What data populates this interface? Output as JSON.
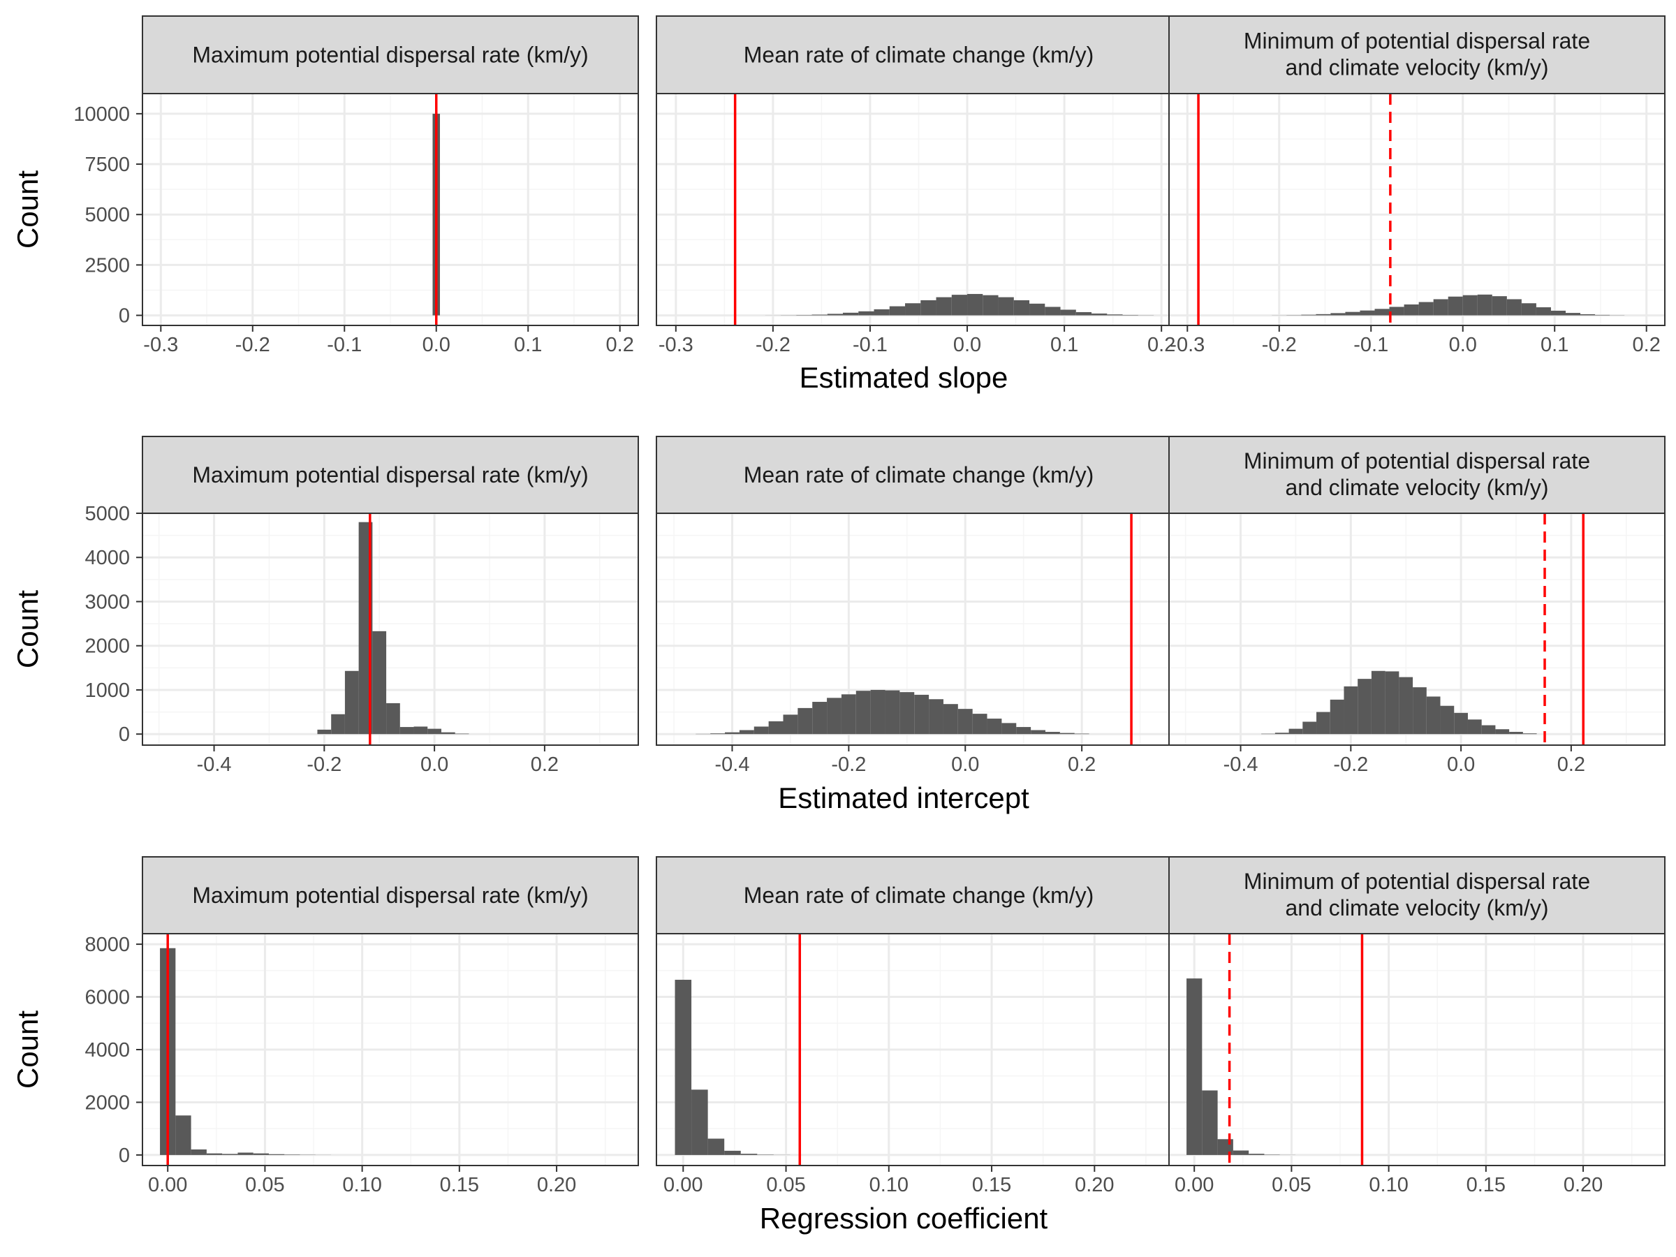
{
  "figure": {
    "y_axis_label": "Count",
    "row_xlabels": [
      "Estimated slope",
      "Estimated intercept",
      "Regression coefficient"
    ],
    "facet_titles": [
      [
        "Maximum potential dispersal rate (km/y)"
      ],
      [
        "Mean rate of climate change (km/y)"
      ],
      [
        "Minimum of potential dispersal rate",
        "and climate velocity (km/y)"
      ]
    ],
    "colors": {
      "bar": "#595959",
      "vline": "#ff0000",
      "strip_fill": "#d9d9d9",
      "strip_border": "#333333",
      "grid_major": "#ebebeb",
      "grid_minor": "#f5f5f5",
      "panel_border": "#333333",
      "tick_text": "#4d4d4d"
    }
  },
  "chart_data": [
    {
      "type": "bar",
      "row": 0,
      "panel": "Maximum potential dispersal rate (km/y)",
      "x": [
        0.0
      ],
      "values": [
        9999
      ],
      "bin_width": 0.008,
      "xlim": [
        -0.32,
        0.22
      ],
      "ylim": [
        -500,
        11000
      ],
      "xticks": [
        -0.3,
        -0.2,
        -0.1,
        0.0,
        0.1,
        0.2
      ],
      "xtick_labels": [
        "-0.3",
        "-0.2",
        "-0.1",
        "0.0",
        "0.1",
        "0.2"
      ],
      "yticks": [
        0,
        2500,
        5000,
        7500,
        10000
      ],
      "ytick_labels": [
        "0",
        "2500",
        "5000",
        "7500",
        "10000"
      ],
      "vlines": [
        {
          "x": 0.0,
          "style": "solid"
        }
      ]
    },
    {
      "type": "bar",
      "row": 0,
      "panel": "Mean rate of climate change (km/y)",
      "x": [
        -0.2,
        -0.184,
        -0.168,
        -0.152,
        -0.136,
        -0.12,
        -0.104,
        -0.088,
        -0.072,
        -0.056,
        -0.04,
        -0.024,
        -0.008,
        0.008,
        0.024,
        0.04,
        0.056,
        0.072,
        0.088,
        0.104,
        0.12,
        0.136,
        0.152,
        0.168,
        0.184
      ],
      "values": [
        3,
        8,
        18,
        35,
        75,
        130,
        200,
        300,
        450,
        600,
        750,
        900,
        1020,
        1060,
        1000,
        900,
        750,
        580,
        420,
        280,
        160,
        90,
        45,
        20,
        8
      ],
      "bin_width": 0.016,
      "xlim": [
        -0.32,
        0.22
      ],
      "ylim": [
        -500,
        11000
      ],
      "xticks": [
        -0.3,
        -0.2,
        -0.1,
        0.0,
        0.1,
        0.2
      ],
      "xtick_labels": [
        "-0.3",
        "-0.2",
        "-0.1",
        "0.0",
        "0.1",
        "0.2"
      ],
      "yticks": [
        0,
        2500,
        5000,
        7500,
        10000
      ],
      "ytick_labels": [
        "0",
        "2500",
        "5000",
        "7500",
        "10000"
      ],
      "vlines": [
        {
          "x": -0.239,
          "style": "solid"
        }
      ]
    },
    {
      "type": "bar",
      "row": 0,
      "panel": "Minimum of potential dispersal rate and climate velocity (km/y)",
      "x": [
        -0.2,
        -0.184,
        -0.168,
        -0.152,
        -0.136,
        -0.12,
        -0.104,
        -0.088,
        -0.072,
        -0.056,
        -0.04,
        -0.024,
        -0.008,
        0.008,
        0.024,
        0.04,
        0.056,
        0.072,
        0.088,
        0.104,
        0.12,
        0.136,
        0.152,
        0.168
      ],
      "values": [
        5,
        12,
        30,
        60,
        110,
        170,
        240,
        320,
        420,
        540,
        660,
        800,
        930,
        1000,
        1030,
        950,
        800,
        600,
        400,
        230,
        120,
        55,
        22,
        8
      ],
      "bin_width": 0.016,
      "xlim": [
        -0.32,
        0.22
      ],
      "ylim": [
        -500,
        11000
      ],
      "xticks": [
        -0.3,
        -0.2,
        -0.1,
        0.0,
        0.1,
        0.2
      ],
      "xtick_labels": [
        "-0.3",
        "-0.2",
        "-0.1",
        "0.0",
        "0.1",
        "0.2"
      ],
      "yticks": [
        0,
        2500,
        5000,
        7500,
        10000
      ],
      "ytick_labels": [
        "0",
        "2500",
        "5000",
        "7500",
        "10000"
      ],
      "vlines": [
        {
          "x": -0.288,
          "style": "solid"
        },
        {
          "x": -0.079,
          "style": "dashed"
        }
      ]
    },
    {
      "type": "bar",
      "row": 1,
      "panel": "Maximum potential dispersal rate (km/y)",
      "x": [
        -0.2,
        -0.175,
        -0.15,
        -0.125,
        -0.1,
        -0.075,
        -0.05,
        -0.025,
        0.0,
        0.025,
        0.05
      ],
      "values": [
        100,
        450,
        1430,
        4800,
        2330,
        700,
        160,
        170,
        120,
        40,
        10
      ],
      "bin_width": 0.025,
      "xlim": [
        -0.53,
        0.37
      ],
      "ylim": [
        -250,
        5000
      ],
      "xticks": [
        -0.4,
        -0.2,
        0.0,
        0.2
      ],
      "xtick_labels": [
        "-0.4",
        "-0.2",
        "0.0",
        "0.2"
      ],
      "yticks": [
        0,
        1000,
        2000,
        3000,
        4000,
        5000
      ],
      "ytick_labels": [
        "0",
        "1000",
        "2000",
        "3000",
        "4000",
        "5000"
      ],
      "vlines": [
        {
          "x": -0.117,
          "style": "solid"
        }
      ]
    },
    {
      "type": "bar",
      "row": 1,
      "panel": "Mean rate of climate change (km/y)",
      "x": [
        -0.45,
        -0.425,
        -0.4,
        -0.375,
        -0.35,
        -0.325,
        -0.3,
        -0.275,
        -0.25,
        -0.225,
        -0.2,
        -0.175,
        -0.15,
        -0.125,
        -0.1,
        -0.075,
        -0.05,
        -0.025,
        0.0,
        0.025,
        0.05,
        0.075,
        0.1,
        0.125,
        0.15,
        0.175,
        0.2
      ],
      "values": [
        5,
        15,
        40,
        90,
        170,
        290,
        440,
        590,
        730,
        820,
        900,
        980,
        1000,
        990,
        950,
        890,
        790,
        680,
        570,
        460,
        350,
        250,
        160,
        90,
        50,
        25,
        10
      ],
      "bin_width": 0.025,
      "xlim": [
        -0.53,
        0.37
      ],
      "ylim": [
        -250,
        5000
      ],
      "xticks": [
        -0.4,
        -0.2,
        0.0,
        0.2
      ],
      "xtick_labels": [
        "-0.4",
        "-0.2",
        "0.0",
        "0.2"
      ],
      "yticks": [
        0,
        1000,
        2000,
        3000,
        4000,
        5000
      ],
      "ytick_labels": [
        "0",
        "1000",
        "2000",
        "3000",
        "4000",
        "5000"
      ],
      "vlines": [
        {
          "x": 0.285,
          "style": "solid"
        }
      ]
    },
    {
      "type": "bar",
      "row": 1,
      "panel": "Minimum of potential dispersal rate and climate velocity (km/y)",
      "x": [
        -0.35,
        -0.325,
        -0.3,
        -0.275,
        -0.25,
        -0.225,
        -0.2,
        -0.175,
        -0.15,
        -0.125,
        -0.1,
        -0.075,
        -0.05,
        -0.025,
        0.0,
        0.025,
        0.05,
        0.075,
        0.1,
        0.125
      ],
      "values": [
        8,
        30,
        120,
        280,
        500,
        780,
        1080,
        1250,
        1430,
        1420,
        1290,
        1060,
        850,
        640,
        480,
        330,
        200,
        110,
        50,
        15
      ],
      "bin_width": 0.025,
      "xlim": [
        -0.53,
        0.37
      ],
      "ylim": [
        -250,
        5000
      ],
      "xticks": [
        -0.4,
        -0.2,
        0.0,
        0.2
      ],
      "xtick_labels": [
        "-0.4",
        "-0.2",
        "0.0",
        "0.2"
      ],
      "yticks": [
        0,
        1000,
        2000,
        3000,
        4000,
        5000
      ],
      "ytick_labels": [
        "0",
        "1000",
        "2000",
        "3000",
        "4000",
        "5000"
      ],
      "vlines": [
        {
          "x": 0.152,
          "style": "dashed"
        },
        {
          "x": 0.222,
          "style": "solid"
        }
      ]
    },
    {
      "type": "bar",
      "row": 2,
      "panel": "Maximum potential dispersal rate (km/y)",
      "x": [
        0.0,
        0.008,
        0.016,
        0.024,
        0.032,
        0.04,
        0.048,
        0.056,
        0.064,
        0.072,
        0.08
      ],
      "values": [
        7850,
        1500,
        210,
        60,
        40,
        90,
        60,
        30,
        15,
        8,
        3
      ],
      "bin_width": 0.008,
      "xlim": [
        -0.013,
        0.242
      ],
      "ylim": [
        -400,
        8400
      ],
      "xticks": [
        0.0,
        0.05,
        0.1,
        0.15,
        0.2
      ],
      "xtick_labels": [
        "0.00",
        "0.05",
        "0.10",
        "0.15",
        "0.20"
      ],
      "yticks": [
        0,
        2000,
        4000,
        6000,
        8000
      ],
      "ytick_labels": [
        "0",
        "2000",
        "4000",
        "6000",
        "8000"
      ],
      "vlines": [
        {
          "x": 0.0,
          "style": "solid"
        }
      ]
    },
    {
      "type": "bar",
      "row": 2,
      "panel": "Mean rate of climate change (km/y)",
      "x": [
        0.0,
        0.008,
        0.016,
        0.024,
        0.032,
        0.04,
        0.048
      ],
      "values": [
        6650,
        2480,
        620,
        160,
        45,
        12,
        4
      ],
      "bin_width": 0.008,
      "xlim": [
        -0.013,
        0.242
      ],
      "ylim": [
        -400,
        8400
      ],
      "xticks": [
        0.0,
        0.05,
        0.1,
        0.15,
        0.2
      ],
      "xtick_labels": [
        "0.00",
        "0.05",
        "0.10",
        "0.15",
        "0.20"
      ],
      "yticks": [
        0,
        2000,
        4000,
        6000,
        8000
      ],
      "ytick_labels": [
        "0",
        "2000",
        "4000",
        "6000",
        "8000"
      ],
      "vlines": [
        {
          "x": 0.0567,
          "style": "solid"
        }
      ]
    },
    {
      "type": "bar",
      "row": 2,
      "panel": "Minimum of potential dispersal rate and climate velocity (km/y)",
      "x": [
        0.0,
        0.008,
        0.016,
        0.024,
        0.032,
        0.04,
        0.048
      ],
      "values": [
        6700,
        2450,
        600,
        170,
        45,
        12,
        4
      ],
      "bin_width": 0.008,
      "xlim": [
        -0.013,
        0.242
      ],
      "ylim": [
        -400,
        8400
      ],
      "xticks": [
        0.0,
        0.05,
        0.1,
        0.15,
        0.2
      ],
      "xtick_labels": [
        "0.00",
        "0.05",
        "0.10",
        "0.15",
        "0.20"
      ],
      "yticks": [
        0,
        2000,
        4000,
        6000,
        8000
      ],
      "ytick_labels": [
        "0",
        "2000",
        "4000",
        "6000",
        "8000"
      ],
      "vlines": [
        {
          "x": 0.0181,
          "style": "dashed"
        },
        {
          "x": 0.0863,
          "style": "solid"
        }
      ]
    }
  ]
}
